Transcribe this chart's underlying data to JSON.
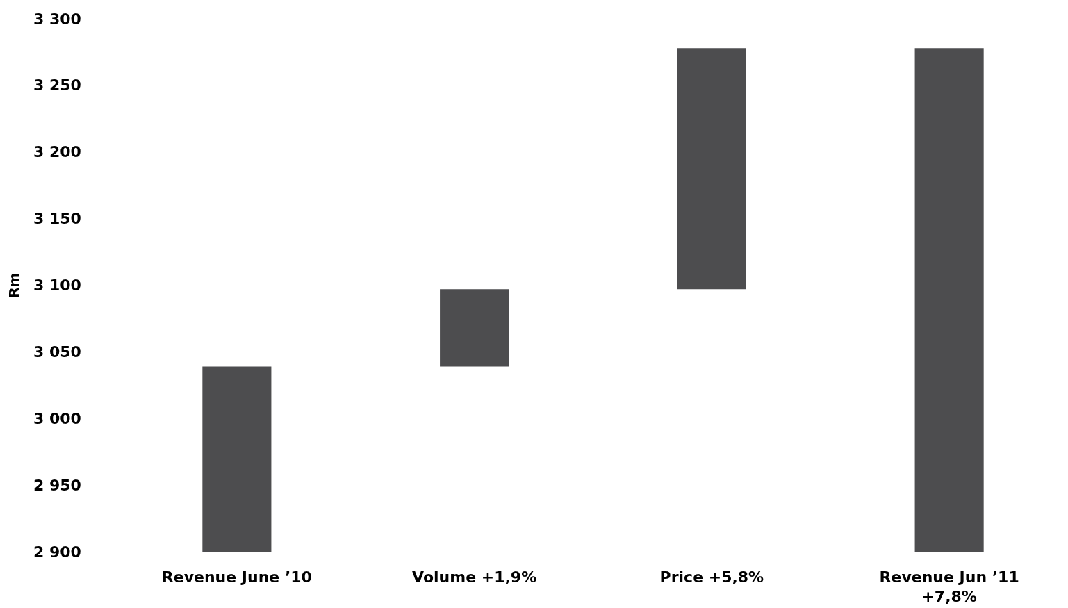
{
  "chart_data": {
    "type": "bar",
    "ylabel": "Rm",
    "categories": [
      "Revenue June ’10",
      "Volume +1,9%",
      "Price +5,8%",
      "Revenue Jun ’11\n+7,8%"
    ],
    "values": [
      139,
      58,
      181,
      378
    ],
    "base": [
      2900,
      3039,
      3097,
      2900
    ],
    "color": "#4d4d4f",
    "ylim": [
      2900,
      3300
    ],
    "yticks": [
      {
        "value": 2900,
        "label": "2 900"
      },
      {
        "value": 2950,
        "label": "2 950"
      },
      {
        "value": 3000,
        "label": "3 000"
      },
      {
        "value": 3050,
        "label": "3 050"
      },
      {
        "value": 3100,
        "label": "3 100"
      },
      {
        "value": 3150,
        "label": "3 150"
      },
      {
        "value": 3200,
        "label": "3 200"
      },
      {
        "value": 3250,
        "label": "3 250"
      },
      {
        "value": 3300,
        "label": "3 300"
      }
    ],
    "grid": false
  }
}
